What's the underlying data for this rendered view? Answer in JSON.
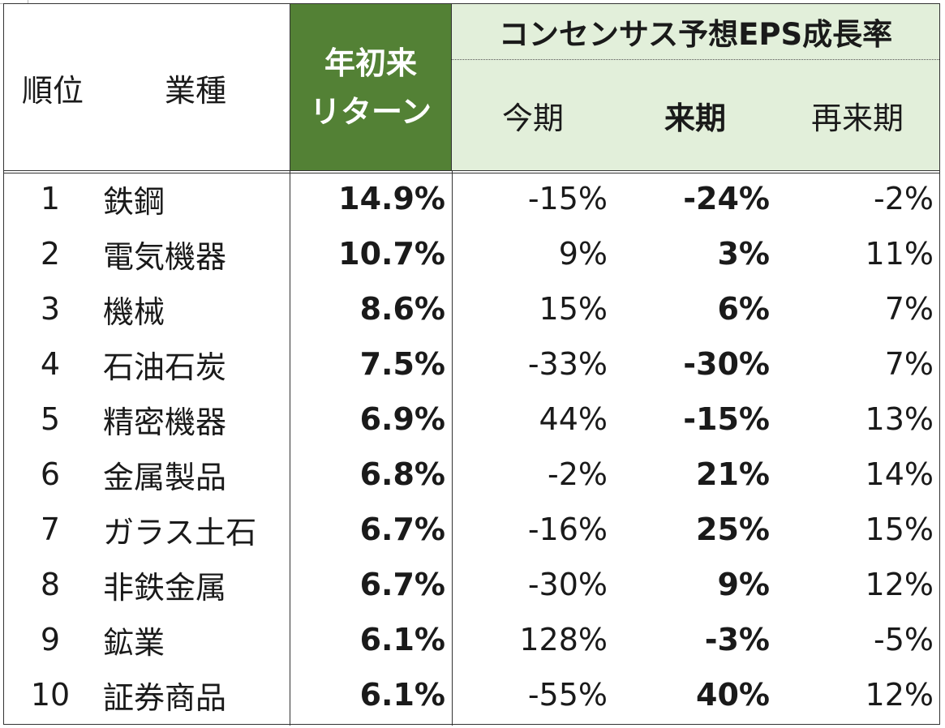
{
  "header": {
    "rank": "順位",
    "industry": "業種",
    "ytd_line1": "年初来",
    "ytd_line2": "リターン",
    "eps_title": "コンセンサス予想EPS成長率",
    "current": "今期",
    "next": "来期",
    "after_next": "再来期"
  },
  "rows": [
    {
      "rank": "1",
      "industry": "鉄鋼",
      "ytd": "14.9%",
      "current": "-15%",
      "next": "-24%",
      "after_next": "-2%"
    },
    {
      "rank": "2",
      "industry": "電気機器",
      "ytd": "10.7%",
      "current": "9%",
      "next": "3%",
      "after_next": "11%"
    },
    {
      "rank": "3",
      "industry": "機械",
      "ytd": "8.6%",
      "current": "15%",
      "next": "6%",
      "after_next": "7%"
    },
    {
      "rank": "4",
      "industry": "石油石炭",
      "ytd": "7.5%",
      "current": "-33%",
      "next": "-30%",
      "after_next": "7%"
    },
    {
      "rank": "5",
      "industry": "精密機器",
      "ytd": "6.9%",
      "current": "44%",
      "next": "-15%",
      "after_next": "13%"
    },
    {
      "rank": "6",
      "industry": "金属製品",
      "ytd": "6.8%",
      "current": "-2%",
      "next": "21%",
      "after_next": "14%"
    },
    {
      "rank": "7",
      "industry": "ガラス土石",
      "ytd": "6.7%",
      "current": "-16%",
      "next": "25%",
      "after_next": "15%"
    },
    {
      "rank": "8",
      "industry": "非鉄金属",
      "ytd": "6.7%",
      "current": "-30%",
      "next": "9%",
      "after_next": "12%"
    },
    {
      "rank": "9",
      "industry": "鉱業",
      "ytd": "6.1%",
      "current": "128%",
      "next": "-3%",
      "after_next": "-5%"
    },
    {
      "rank": "10",
      "industry": "証券商品",
      "ytd": "6.1%",
      "current": "-55%",
      "next": "40%",
      "after_next": "12%"
    }
  ],
  "colors": {
    "ytd_header_bg": "#538135",
    "eps_header_bg": "#e2efda",
    "border": "#333333"
  }
}
